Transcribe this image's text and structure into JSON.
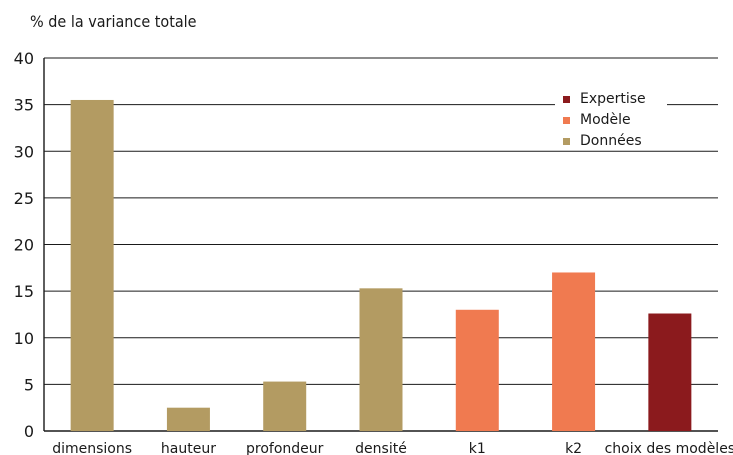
{
  "chart_data": {
    "type": "bar",
    "ylabel": "% de la variance totale",
    "xlabel": "",
    "categories": [
      "dimensions",
      "hauteur",
      "profondeur",
      "densité",
      "k1",
      "k2",
      "choix des modèles"
    ],
    "values": [
      35.5,
      2.5,
      5.3,
      15.3,
      13.0,
      17.0,
      12.6
    ],
    "groups": [
      "Données",
      "Données",
      "Données",
      "Données",
      "Modèle",
      "Modèle",
      "Expertise"
    ],
    "ylim": [
      0,
      40
    ],
    "yticks": [
      0,
      5,
      10,
      15,
      20,
      25,
      30,
      35,
      40
    ],
    "grid": true,
    "legend": {
      "placement": "top-right",
      "entries": [
        {
          "name": "Expertise",
          "color": "#8b1a1d"
        },
        {
          "name": "Modèle",
          "color": "#f07a50"
        },
        {
          "name": "Données",
          "color": "#b39b62"
        }
      ]
    }
  }
}
